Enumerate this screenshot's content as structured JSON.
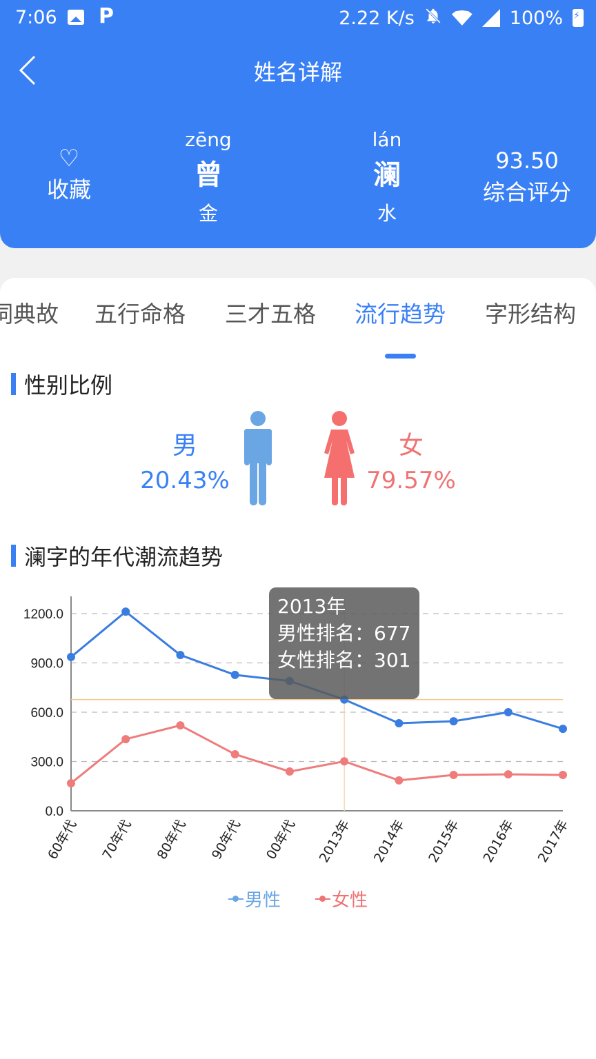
{
  "status_bar": {
    "time": "7:06",
    "icons_left": [
      "image-icon",
      "parking-icon"
    ],
    "p_glyph": "P",
    "net_speed": "2.22 K/s",
    "icons_right": [
      "bell-off-icon",
      "wifi-icon",
      "signal-icon"
    ],
    "battery": "100%"
  },
  "header": {
    "title": "姓名详解",
    "back_icon": "chevron-left-icon",
    "favorite": {
      "icon": "heart-icon",
      "glyph": "♡",
      "label": "收藏"
    },
    "characters": [
      {
        "pinyin": "zēng",
        "hanzi": "曾",
        "wuxing": "金"
      },
      {
        "pinyin": "lán",
        "hanzi": "澜",
        "wuxing": "水"
      }
    ],
    "score": {
      "value": "93.50",
      "label": "综合评分"
    }
  },
  "tabs": [
    {
      "label": "词典故",
      "active": false
    },
    {
      "label": "五行命格",
      "active": false
    },
    {
      "label": "三才五格",
      "active": false
    },
    {
      "label": "流行趋势",
      "active": true
    },
    {
      "label": "字形结构",
      "active": false
    }
  ],
  "gender_section": {
    "title": "性别比例",
    "male": {
      "label": "男",
      "percent": "20.43%",
      "color": "#3a80f5",
      "figure_color": "#6aa6e4"
    },
    "female": {
      "label": "女",
      "percent": "79.57%",
      "color": "#ef7373",
      "figure_color": "#f56f6f"
    }
  },
  "trend_section": {
    "title": "澜字的年代潮流趋势"
  },
  "tooltip": {
    "title": "2013年",
    "male_line": "男性排名：677",
    "female_line": "女性排名：301"
  },
  "legend": {
    "male": "男性",
    "female": "女性"
  },
  "chart_data": {
    "type": "line",
    "title": "澜字的年代潮流趋势",
    "xlabel": "",
    "ylabel": "",
    "categories": [
      "60年代",
      "70年代",
      "80年代",
      "90年代",
      "00年代",
      "2013年",
      "2014年",
      "2015年",
      "2016年",
      "2017年"
    ],
    "series": [
      {
        "name": "男性",
        "color": "#3a7de0",
        "values": [
          936,
          1212,
          948,
          827,
          790,
          677,
          533,
          545,
          600,
          499
        ]
      },
      {
        "name": "女性",
        "color": "#ef7b7b",
        "values": [
          168,
          436,
          520,
          344,
          239,
          301,
          185,
          218,
          222,
          218
        ]
      }
    ],
    "yticks": [
      "0.0",
      "300.0",
      "600.0",
      "900.0",
      "1200.0"
    ],
    "ylim": [
      0,
      1200
    ],
    "grid": "horizontal dashed",
    "legend_position": "bottom",
    "highlight": {
      "category": "2013年",
      "crosshair_y": 677
    }
  }
}
